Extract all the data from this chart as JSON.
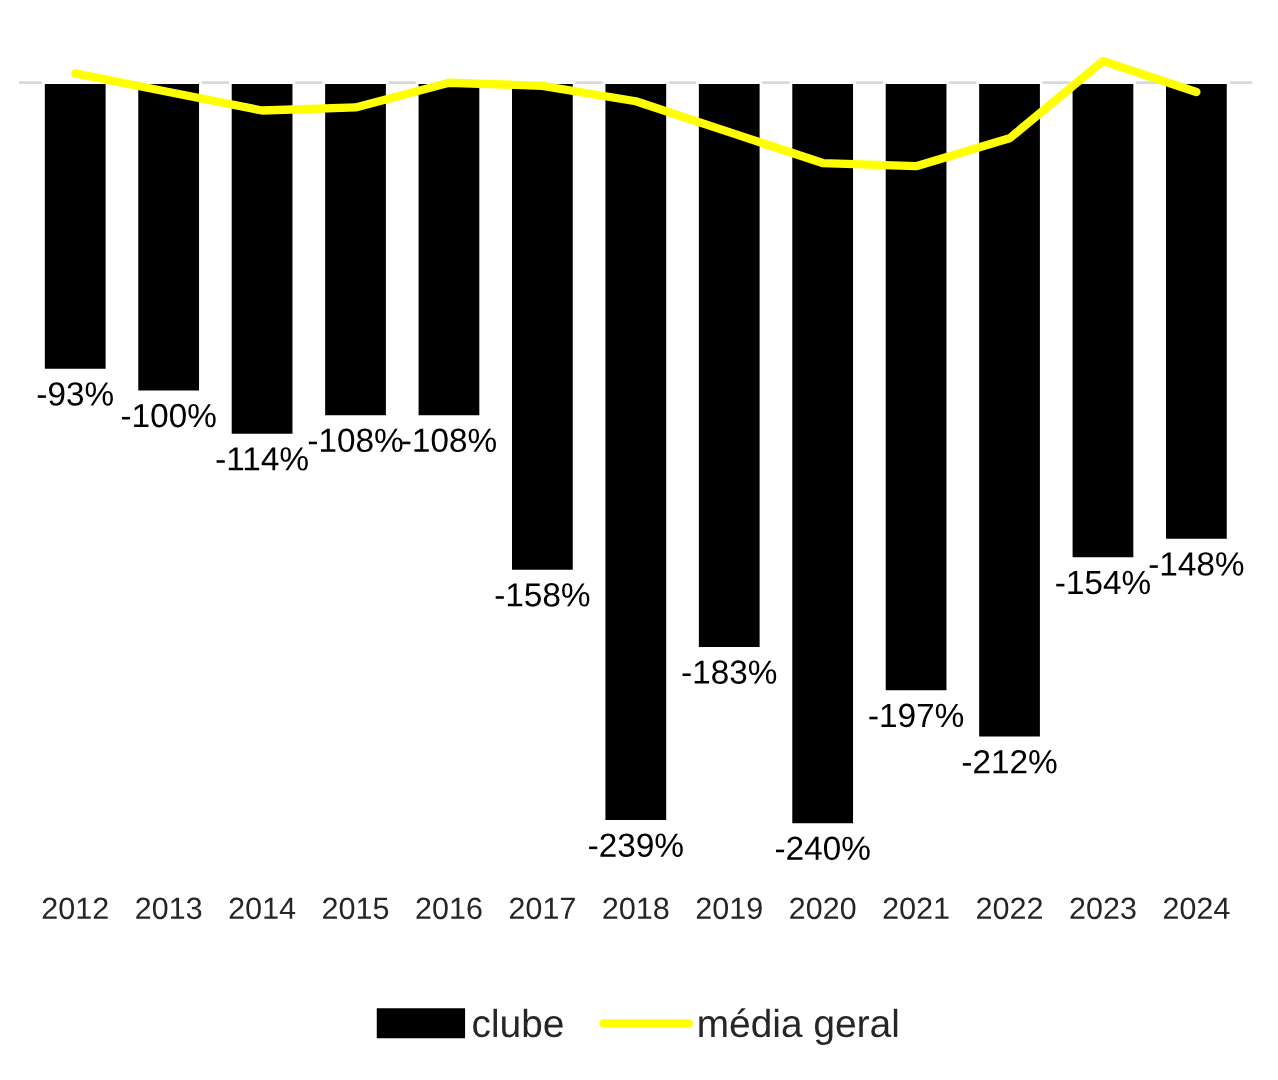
{
  "chart_data": {
    "type": "bar",
    "categories": [
      "2012",
      "2013",
      "2014",
      "2015",
      "2016",
      "2017",
      "2018",
      "2019",
      "2020",
      "2021",
      "2022",
      "2023",
      "2024"
    ],
    "series": [
      {
        "name": "clube",
        "color": "#000000",
        "values": [
          -93,
          -100,
          -114,
          -108,
          -108,
          -158,
          -239,
          -183,
          -240,
          -197,
          -212,
          -154,
          -148
        ],
        "value_labels": [
          "-93%",
          "-100%",
          "-114%",
          "-108%",
          "-108%",
          "-158%",
          "-239%",
          "-183%",
          "-240%",
          "-197%",
          "-212%",
          "-154%",
          "-148%"
        ]
      },
      {
        "name": "média geral",
        "type": "line",
        "color": "#ffff00",
        "values": [
          3,
          -3,
          -9,
          -8,
          0,
          -1,
          -6,
          -16,
          -26,
          -27,
          -18,
          7,
          -3
        ]
      }
    ],
    "legend": "bottom"
  }
}
